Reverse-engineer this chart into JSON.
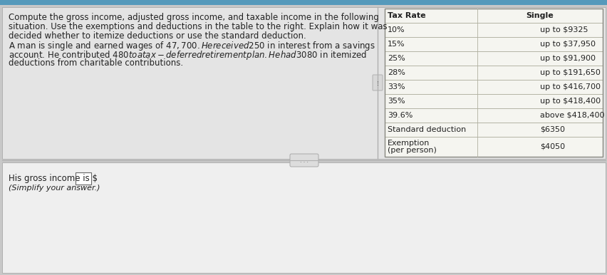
{
  "background_color": "#c8c8c8",
  "top_panel_bg": "#e4e4e4",
  "bottom_panel_bg": "#efefef",
  "table_bg": "#f5f5f0",
  "table_border_color": "#b0b0a0",
  "divider_color": "#b0b0b0",
  "main_text_line1": "Compute the gross income, adjusted gross income, and taxable income in the following",
  "main_text_line2": "situation. Use the exemptions and deductions in the table to the right. Explain how it was",
  "main_text_line3": "decided whether to itemize deductions or use the standard deduction.",
  "problem_text_line1": "A man is single and earned wages of $47,700. He received $250 in interest from a savings",
  "problem_text_line2": "account. He contributed $480 to a tax-deferred retirement plan. He had $3080 in itemized",
  "problem_text_line3": "deductions from charitable contributions.",
  "answer_label": "His gross income is $",
  "simplify_text": "(Simplify your answer.)",
  "table_col1_header": "Tax Rate",
  "table_col2_header": "Single",
  "table_rows": [
    [
      "10%",
      "up to $9325"
    ],
    [
      "15%",
      "up to $37,950"
    ],
    [
      "25%",
      "up to $91,900"
    ],
    [
      "28%",
      "up to $191,650"
    ],
    [
      "33%",
      "up to $416,700"
    ],
    [
      "35%",
      "up to $418,400"
    ],
    [
      "39.6%",
      "above $418,400"
    ],
    [
      "Standard deduction",
      "$6350"
    ],
    [
      "Exemption\n(per person)",
      "$4050"
    ]
  ],
  "font_size_main": 8.5,
  "font_size_table": 8.0,
  "font_size_answer": 8.5,
  "text_color": "#222222",
  "top_bar_color": "#5599bb"
}
